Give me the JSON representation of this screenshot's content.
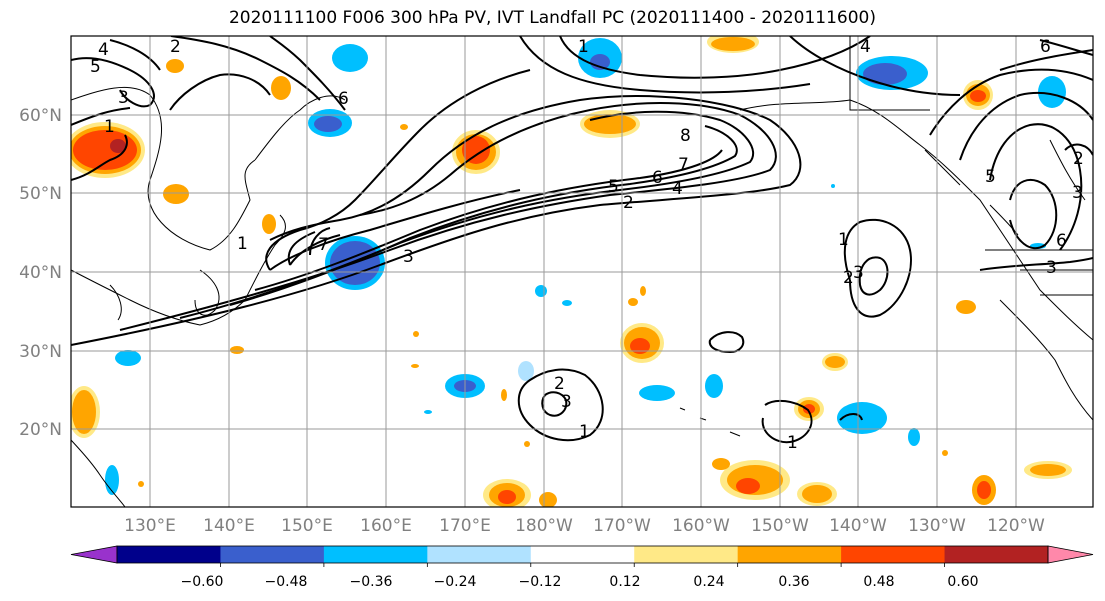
{
  "title": "2020111100 F006 300 hPa PV, IVT Landfall PC (2020111400 - 2020111600)",
  "map": {
    "lat_labels": [
      "60°N",
      "50°N",
      "40°N",
      "30°N",
      "20°N"
    ],
    "lon_labels": [
      "130°E",
      "140°E",
      "150°E",
      "160°E",
      "170°E",
      "180°W",
      "170°W",
      "160°W",
      "150°W",
      "140°W",
      "130°W",
      "120°W"
    ],
    "contour_labels": [
      "1",
      "2",
      "3",
      "4",
      "5",
      "6",
      "7",
      "8",
      "2",
      "3",
      "4",
      "5",
      "6",
      "7",
      "1",
      "2",
      "3",
      "1",
      "2",
      "3",
      "1",
      "1",
      "3",
      "5",
      "6",
      "1",
      "2",
      "3",
      "4",
      "6"
    ]
  },
  "colorbar": {
    "ticks": [
      "−0.60",
      "−0.48",
      "−0.36",
      "−0.24",
      "−0.12",
      "0.12",
      "0.24",
      "0.36",
      "0.48",
      "0.60"
    ],
    "colors": [
      "#9932cc",
      "#00008b",
      "#3a5fcd",
      "#00bfff",
      "#b0e2ff",
      "#ffffff",
      "#ffe987",
      "#ffa500",
      "#ff4500",
      "#b22222",
      "#ff88aa"
    ]
  }
}
